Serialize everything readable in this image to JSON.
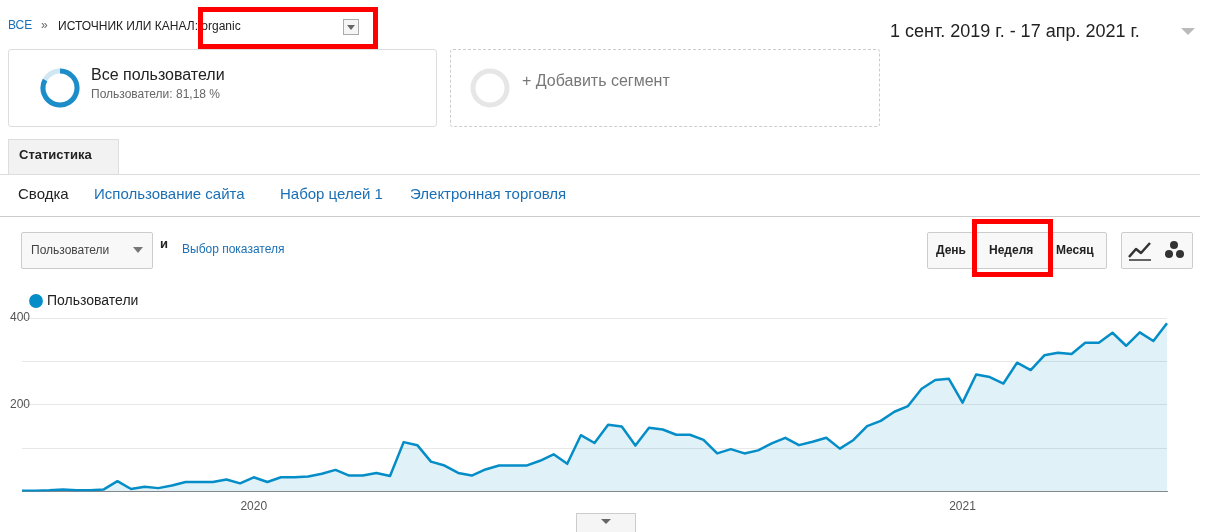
{
  "chart_data": {
    "type": "area",
    "categories": [
      null,
      null,
      null,
      null,
      null,
      null,
      null,
      null,
      null,
      null,
      null,
      null,
      null,
      null,
      null,
      null,
      null,
      "2020",
      null,
      null,
      null,
      null,
      null,
      null,
      null,
      null,
      null,
      null,
      null,
      null,
      null,
      null,
      null,
      null,
      null,
      null,
      null,
      null,
      null,
      null,
      null,
      null,
      null,
      null,
      null,
      null,
      null,
      null,
      null,
      null,
      null,
      null,
      null,
      null,
      null,
      null,
      null,
      null,
      null,
      null,
      null,
      null,
      null,
      null,
      null,
      null,
      null,
      null,
      null,
      "2021",
      null,
      null,
      null,
      null,
      null,
      null,
      null,
      null,
      null,
      null,
      null,
      null,
      null,
      null,
      null
    ],
    "series": [
      {
        "name": "Пользователи",
        "color": "#058dc7",
        "values": [
          2,
          2,
          3,
          5,
          3,
          3,
          5,
          24,
          6,
          11,
          8,
          14,
          22,
          22,
          22,
          28,
          19,
          33,
          22,
          33,
          33,
          35,
          41,
          50,
          37,
          37,
          43,
          36,
          114,
          107,
          69,
          60,
          43,
          37,
          51,
          60,
          60,
          60,
          71,
          86,
          64,
          130,
          112,
          154,
          150,
          106,
          147,
          143,
          131,
          131,
          119,
          88,
          98,
          88,
          95,
          111,
          124,
          107,
          115,
          124,
          99,
          119,
          151,
          163,
          184,
          197,
          237,
          257,
          260,
          205,
          270,
          264,
          249,
          297,
          280,
          314,
          320,
          317,
          343,
          343,
          366,
          336,
          367,
          347,
          388
        ]
      }
    ],
    "ylim": [
      0,
      400
    ],
    "yticks": [
      {
        "value": 100,
        "label": null
      },
      200,
      {
        "value": 300,
        "label": null
      },
      400
    ],
    "grid": "y",
    "legend": "top left",
    "marker": "none",
    "annotations": [
      "ВСЕ",
      "»",
      "ИСТОЧНИК ИЛИ КАНАЛ: organic",
      "1 сент. 2019 г. - 17 апр. 2021 г.",
      "Все пользователи",
      "Пользователи: 81,18 %",
      "+ Добавить сегмент",
      "Статистика",
      "Сводка",
      "Использование сайта",
      "Набор целей 1",
      "Электронная торговля",
      "Пользователи",
      "и",
      "Выбор показателя",
      "День",
      "Неделя",
      "Месяц"
    ]
  }
}
